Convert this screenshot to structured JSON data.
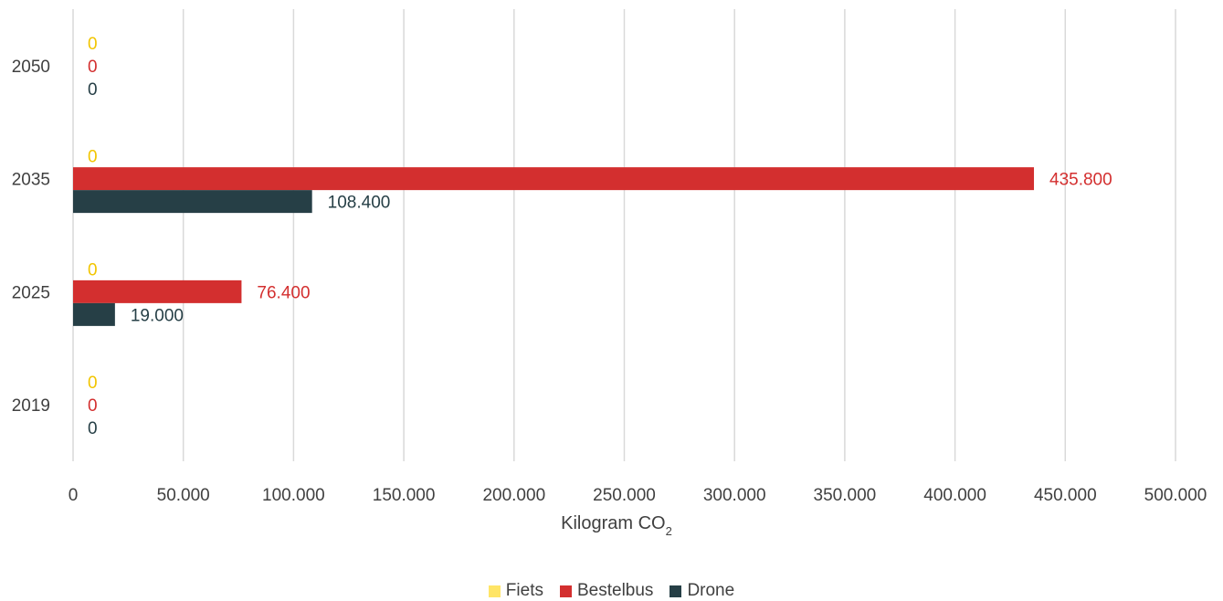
{
  "chart_data": {
    "type": "bar",
    "orientation": "horizontal",
    "categories": [
      "2019",
      "2025",
      "2035",
      "2050"
    ],
    "series": [
      {
        "name": "Fiets",
        "color": "#FFE566",
        "label_color": "#F2C500",
        "values": [
          0,
          0,
          0,
          0
        ],
        "labels": [
          "0",
          "0",
          "0",
          "0"
        ]
      },
      {
        "name": "Bestelbus",
        "color": "#D32F2F",
        "label_color": "#D32F2F",
        "values": [
          0,
          76400,
          435800,
          0
        ],
        "labels": [
          "0",
          "76.400",
          "435.800",
          "0"
        ]
      },
      {
        "name": "Drone",
        "color": "#263F46",
        "label_color": "#263F46",
        "values": [
          0,
          19000,
          108400,
          0
        ],
        "labels": [
          "0",
          "19.000",
          "108.400",
          "0"
        ]
      }
    ],
    "xlim": [
      0,
      500000
    ],
    "x_ticks": [
      "0",
      "50.000",
      "100.000",
      "150.000",
      "200.000",
      "250.000",
      "300.000",
      "350.000",
      "400.000",
      "450.000",
      "500.000"
    ],
    "xlabel_main": "Kilogram CO",
    "xlabel_sub": "2",
    "grid": true,
    "legend_position": "bottom"
  }
}
